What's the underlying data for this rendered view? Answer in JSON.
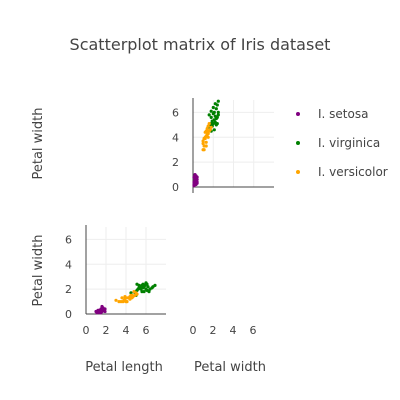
{
  "chart_data": {
    "type": "scatter",
    "title": "Scatterplot matrix of Iris dataset",
    "dimensions": [
      "Petal length",
      "Petal width"
    ],
    "panels": [
      {
        "id": "p_width_vs_width",
        "xlabel": "",
        "ylabel": "Petal width",
        "xlim": [
          0,
          8
        ],
        "ylim": [
          0,
          7
        ],
        "xticks": [],
        "yticks": [
          0,
          2,
          4,
          6
        ],
        "grid": true,
        "show_x_tick_labels": false
      },
      {
        "id": "p_width_vs_length",
        "xlabel": "Petal length",
        "ylabel": "Petal width",
        "xlim": [
          0,
          8
        ],
        "ylim": [
          0,
          7
        ],
        "xticks": [
          0,
          2,
          4,
          6
        ],
        "yticks": [
          0,
          2,
          4,
          6
        ],
        "grid": true,
        "show_x_tick_labels": true
      },
      {
        "id": "empty_bottom_right",
        "xlabel": "Petal width",
        "xticks": [
          0,
          2,
          4,
          6
        ],
        "xlim": [
          0,
          8
        ],
        "empty": true
      }
    ],
    "series": [
      {
        "name": "I. setosa",
        "color": "#800080",
        "panel_points": {
          "p_width_vs_width": [
            [
              0.1,
              0.1
            ],
            [
              0.1,
              0.2
            ],
            [
              0.2,
              0.2
            ],
            [
              0.2,
              0.3
            ],
            [
              0.2,
              0.4
            ],
            [
              0.3,
              0.3
            ],
            [
              0.3,
              0.4
            ],
            [
              0.3,
              0.5
            ],
            [
              0.4,
              0.4
            ],
            [
              0.4,
              0.6
            ],
            [
              0.2,
              0.6
            ],
            [
              0.3,
              0.7
            ],
            [
              0.1,
              0.8
            ],
            [
              0.4,
              0.8
            ],
            [
              0.2,
              1.0
            ],
            [
              0.3,
              0.2
            ],
            [
              0.1,
              0.4
            ],
            [
              0.2,
              0.5
            ],
            [
              0.4,
              0.3
            ],
            [
              0.3,
              0.9
            ]
          ],
          "p_width_vs_length": [
            [
              1.1,
              0.1
            ],
            [
              1.2,
              0.2
            ],
            [
              1.3,
              0.2
            ],
            [
              1.3,
              0.3
            ],
            [
              1.4,
              0.1
            ],
            [
              1.4,
              0.2
            ],
            [
              1.4,
              0.3
            ],
            [
              1.5,
              0.2
            ],
            [
              1.5,
              0.4
            ],
            [
              1.6,
              0.2
            ],
            [
              1.6,
              0.4
            ],
            [
              1.7,
              0.3
            ],
            [
              1.7,
              0.5
            ],
            [
              1.9,
              0.2
            ],
            [
              1.9,
              0.4
            ],
            [
              1.5,
              0.1
            ],
            [
              1.2,
              0.3
            ],
            [
              1.6,
              0.6
            ],
            [
              1.0,
              0.2
            ],
            [
              1.8,
              0.3
            ]
          ]
        }
      },
      {
        "name": "I. virginica",
        "color": "#008000",
        "panel_points": {
          "p_width_vs_width": [
            [
              1.5,
              4.8
            ],
            [
              1.7,
              5.0
            ],
            [
              1.8,
              5.1
            ],
            [
              1.8,
              5.6
            ],
            [
              1.9,
              5.0
            ],
            [
              1.9,
              5.3
            ],
            [
              2.0,
              5.1
            ],
            [
              2.0,
              5.9
            ],
            [
              2.1,
              5.4
            ],
            [
              2.1,
              6.0
            ],
            [
              2.2,
              5.7
            ],
            [
              2.2,
              5.2
            ],
            [
              2.3,
              5.5
            ],
            [
              2.3,
              6.3
            ],
            [
              2.4,
              5.6
            ],
            [
              2.4,
              6.6
            ],
            [
              2.5,
              6.0
            ],
            [
              2.5,
              6.9
            ],
            [
              1.6,
              5.8
            ],
            [
              1.8,
              6.1
            ],
            [
              2.0,
              6.4
            ],
            [
              2.2,
              6.7
            ],
            [
              1.9,
              4.9
            ],
            [
              2.3,
              5.0
            ],
            [
              2.1,
              4.6
            ],
            [
              1.8,
              4.5
            ],
            [
              2.5,
              5.8
            ],
            [
              2.4,
              5.1
            ]
          ],
          "p_width_vs_length": [
            [
              4.9,
              1.7
            ],
            [
              5.0,
              1.8
            ],
            [
              5.1,
              1.9
            ],
            [
              5.2,
              2.0
            ],
            [
              5.3,
              2.1
            ],
            [
              5.4,
              2.2
            ],
            [
              5.5,
              2.0
            ],
            [
              5.6,
              2.3
            ],
            [
              5.7,
              2.4
            ],
            [
              5.8,
              1.8
            ],
            [
              5.8,
              2.2
            ],
            [
              5.9,
              2.3
            ],
            [
              6.0,
              2.5
            ],
            [
              6.1,
              2.4
            ],
            [
              6.1,
              1.9
            ],
            [
              6.3,
              1.8
            ],
            [
              6.4,
              2.0
            ],
            [
              6.6,
              2.1
            ],
            [
              6.7,
              2.2
            ],
            [
              6.9,
              2.3
            ],
            [
              4.5,
              1.7
            ],
            [
              5.0,
              1.5
            ],
            [
              5.6,
              1.8
            ],
            [
              6.0,
              2.0
            ],
            [
              6.2,
              2.2
            ],
            [
              5.3,
              2.3
            ],
            [
              5.7,
              2.1
            ],
            [
              5.1,
              2.4
            ]
          ]
        }
      },
      {
        "name": "I. versicolor",
        "color": "#FFA500",
        "panel_points": {
          "p_width_vs_width": [
            [
              1.0,
              3.0
            ],
            [
              1.0,
              3.5
            ],
            [
              1.1,
              3.3
            ],
            [
              1.1,
              3.9
            ],
            [
              1.2,
              4.0
            ],
            [
              1.2,
              4.4
            ],
            [
              1.3,
              3.6
            ],
            [
              1.3,
              4.1
            ],
            [
              1.3,
              4.5
            ],
            [
              1.4,
              4.2
            ],
            [
              1.4,
              4.7
            ],
            [
              1.5,
              4.3
            ],
            [
              1.5,
              4.5
            ],
            [
              1.5,
              4.9
            ],
            [
              1.6,
              4.5
            ],
            [
              1.6,
              5.1
            ],
            [
              1.7,
              4.6
            ],
            [
              1.8,
              4.8
            ],
            [
              1.0,
              3.7
            ],
            [
              1.2,
              3.9
            ],
            [
              1.4,
              4.4
            ],
            [
              1.3,
              3.3
            ],
            [
              1.1,
              3.0
            ],
            [
              1.5,
              4.0
            ]
          ],
          "p_width_vs_length": [
            [
              3.0,
              1.1
            ],
            [
              3.3,
              1.0
            ],
            [
              3.5,
              1.0
            ],
            [
              3.6,
              1.3
            ],
            [
              3.7,
              1.0
            ],
            [
              3.8,
              1.1
            ],
            [
              3.9,
              1.2
            ],
            [
              4.0,
              1.3
            ],
            [
              4.1,
              1.0
            ],
            [
              4.2,
              1.3
            ],
            [
              4.3,
              1.3
            ],
            [
              4.4,
              1.4
            ],
            [
              4.5,
              1.5
            ],
            [
              4.6,
              1.3
            ],
            [
              4.7,
              1.4
            ],
            [
              4.8,
              1.8
            ],
            [
              4.9,
              1.5
            ],
            [
              5.0,
              1.7
            ],
            [
              5.1,
              1.6
            ],
            [
              4.0,
              1.0
            ],
            [
              4.4,
              1.2
            ],
            [
              4.6,
              1.5
            ],
            [
              3.9,
              1.4
            ],
            [
              4.5,
              1.3
            ]
          ]
        }
      }
    ],
    "legend": {
      "placement": "right",
      "entries": [
        "I. setosa",
        "I. virginica",
        "I. versicolor"
      ]
    }
  }
}
